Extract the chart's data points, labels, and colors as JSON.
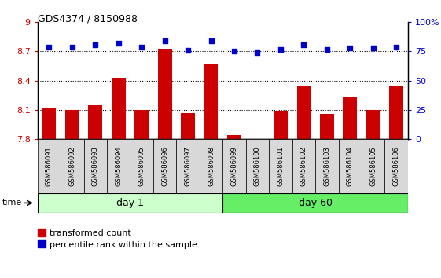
{
  "title": "GDS4374 / 8150988",
  "samples": [
    "GSM586091",
    "GSM586092",
    "GSM586093",
    "GSM586094",
    "GSM586095",
    "GSM586096",
    "GSM586097",
    "GSM586098",
    "GSM586099",
    "GSM586100",
    "GSM586101",
    "GSM586102",
    "GSM586103",
    "GSM586104",
    "GSM586105",
    "GSM586106"
  ],
  "bar_values": [
    8.12,
    8.1,
    8.15,
    8.43,
    8.1,
    8.72,
    8.07,
    8.57,
    7.84,
    7.8,
    8.09,
    8.35,
    8.06,
    8.23,
    8.1,
    8.35
  ],
  "percentile_values": [
    79,
    79,
    81,
    82,
    79,
    84,
    76,
    84,
    75,
    74,
    77,
    81,
    77,
    78,
    78,
    79
  ],
  "bar_color": "#cc0000",
  "percentile_color": "#0000cc",
  "ylim_left": [
    7.8,
    9.0
  ],
  "ylim_right": [
    0,
    100
  ],
  "yticks_left": [
    7.8,
    8.1,
    8.4,
    8.7,
    9.0
  ],
  "yticks_right": [
    0,
    25,
    50,
    75,
    100
  ],
  "ytick_labels_left": [
    "7.8",
    "8.1",
    "8.4",
    "8.7",
    "9"
  ],
  "ytick_labels_right": [
    "0",
    "25",
    "50",
    "75",
    "100%"
  ],
  "hlines": [
    8.7,
    8.4,
    8.1
  ],
  "day1_count": 8,
  "day60_count": 8,
  "day1_label": "day 1",
  "day60_label": "day 60",
  "day1_color": "#ccffcc",
  "day60_color": "#66ee66",
  "time_label": "time",
  "legend_bar_label": "transformed count",
  "legend_pct_label": "percentile rank within the sample",
  "bg_color": "#ffffff",
  "plot_bg_color": "#ffffff",
  "label_box_color": "#d8d8d8"
}
